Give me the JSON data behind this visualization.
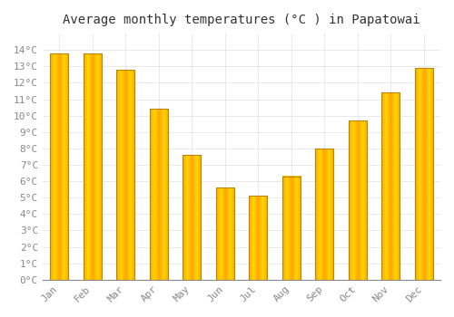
{
  "title": "Average monthly temperatures (°C ) in Papatowai",
  "months": [
    "Jan",
    "Feb",
    "Mar",
    "Apr",
    "May",
    "Jun",
    "Jul",
    "Aug",
    "Sep",
    "Oct",
    "Nov",
    "Dec"
  ],
  "values": [
    13.8,
    13.8,
    12.8,
    10.4,
    7.6,
    5.6,
    5.1,
    6.3,
    8.0,
    9.7,
    11.4,
    12.9
  ],
  "bar_color_center": "#FFD700",
  "bar_color_edge": "#FFA500",
  "bar_outline_color": "#B8860B",
  "ylim": [
    0,
    15
  ],
  "yticks": [
    0,
    1,
    2,
    3,
    4,
    5,
    6,
    7,
    8,
    9,
    10,
    11,
    12,
    13,
    14
  ],
  "ytick_labels": [
    "0°C",
    "1°C",
    "2°C",
    "3°C",
    "4°C",
    "5°C",
    "6°C",
    "7°C",
    "8°C",
    "9°C",
    "10°C",
    "11°C",
    "12°C",
    "13°C",
    "14°C"
  ],
  "background_color": "#FFFFFF",
  "grid_color": "#E0E0E0",
  "title_fontsize": 10,
  "tick_fontsize": 8,
  "font_family": "monospace",
  "tick_color": "#888888",
  "bar_width": 0.55
}
